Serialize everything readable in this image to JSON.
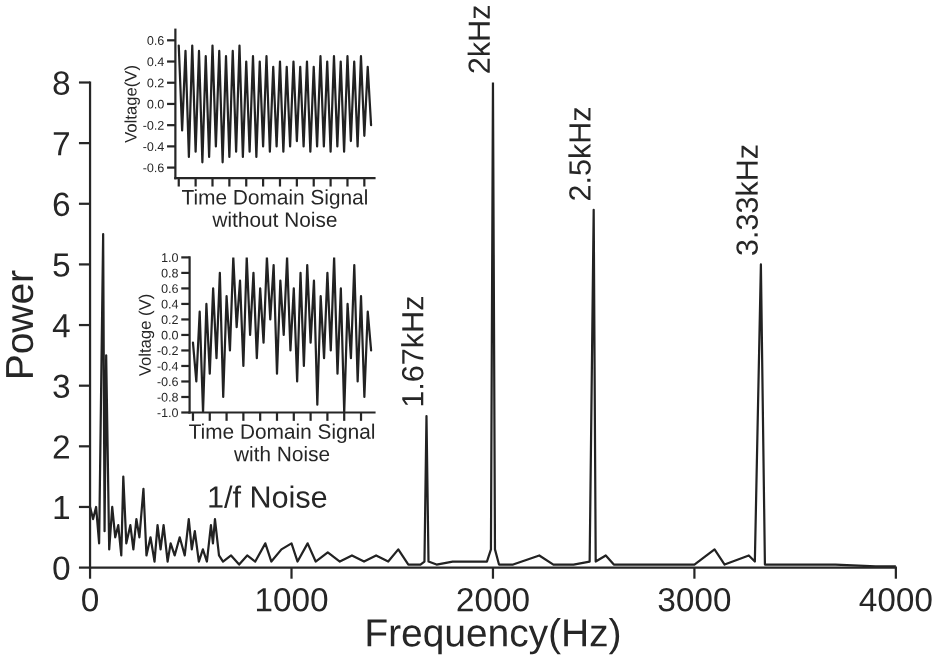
{
  "chart_data": [
    {
      "type": "line",
      "xlabel": "Frequency(Hz)",
      "ylabel": "Power",
      "xlim": [
        0,
        4000
      ],
      "ylim": [
        0,
        8
      ],
      "xticks": [
        0,
        1000,
        2000,
        3000,
        4000
      ],
      "yticks": [
        0,
        1,
        2,
        3,
        4,
        5,
        6,
        7,
        8
      ],
      "grid": false,
      "series": [
        {
          "color": "#222222",
          "x": [
            0,
            15,
            30,
            45,
            65,
            72,
            80,
            95,
            110,
            125,
            140,
            155,
            165,
            180,
            200,
            215,
            230,
            245,
            265,
            280,
            300,
            320,
            335,
            350,
            365,
            385,
            400,
            420,
            445,
            470,
            490,
            505,
            520,
            540,
            560,
            580,
            600,
            610,
            620,
            640,
            660,
            700,
            740,
            780,
            820,
            870,
            900,
            950,
            1000,
            1030,
            1080,
            1120,
            1180,
            1240,
            1300,
            1360,
            1420,
            1480,
            1530,
            1580,
            1640,
            1660,
            1670,
            1680,
            1720,
            1800,
            1900,
            1970,
            1990,
            2000,
            2010,
            2030,
            2100,
            2230,
            2300,
            2400,
            2480,
            2500,
            2510,
            2560,
            2600,
            2800,
            3000,
            3100,
            3150,
            3270,
            3300,
            3330,
            3350,
            3500,
            3700,
            3900,
            4000
          ],
          "values": [
            1.0,
            0.8,
            1.0,
            0.4,
            5.5,
            0.6,
            3.5,
            0.3,
            1.0,
            0.5,
            0.7,
            0.2,
            1.5,
            0.4,
            0.7,
            0.3,
            0.8,
            0.5,
            1.3,
            0.2,
            0.5,
            0.1,
            0.7,
            0.3,
            0.7,
            0.1,
            0.4,
            0.2,
            0.5,
            0.2,
            0.8,
            0.3,
            0.6,
            0.1,
            0.3,
            0.1,
            0.7,
            0.4,
            0.8,
            0.2,
            0.1,
            0.2,
            0.05,
            0.2,
            0.1,
            0.4,
            0.1,
            0.3,
            0.4,
            0.1,
            0.4,
            0.1,
            0.25,
            0.1,
            0.2,
            0.1,
            0.2,
            0.1,
            0.3,
            0.05,
            0.05,
            0.1,
            2.5,
            0.1,
            0.05,
            0.1,
            0.1,
            0.1,
            0.3,
            8.0,
            0.3,
            0.05,
            0.05,
            0.2,
            0.05,
            0.05,
            0.1,
            5.9,
            0.1,
            0.2,
            0.05,
            0.05,
            0.05,
            0.3,
            0.05,
            0.2,
            0.1,
            5.0,
            0.05,
            0.05,
            0.05,
            0.02,
            0.02
          ]
        }
      ],
      "annotations": [
        {
          "text": "1.67kHz",
          "x": 1670,
          "y": 2.5
        },
        {
          "text": "2kHz",
          "x": 2000,
          "y": 8.0
        },
        {
          "text": "2.5kHz",
          "x": 2500,
          "y": 5.9
        },
        {
          "text": "3.33kHz",
          "x": 3330,
          "y": 5.0
        },
        "1/f Noise"
      ]
    },
    {
      "type": "line",
      "xlabel": "Time Domain Signal\nwithout Noise",
      "ylabel": "Voltage(V)",
      "ylim": [
        -0.7,
        0.7
      ],
      "yticks": [
        -0.6,
        -0.4,
        -0.2,
        {
          "value": 0,
          "label": "0.0"
        },
        0.2,
        0.4,
        0.6
      ],
      "grid": false,
      "categories": [
        null,
        null,
        null,
        null,
        null,
        null,
        null,
        null,
        null,
        null,
        null,
        null,
        null,
        null,
        null,
        null,
        null,
        null,
        null,
        null,
        null,
        null,
        null,
        null,
        null,
        null,
        null,
        null,
        null,
        null,
        null,
        null,
        null,
        null,
        null,
        null,
        null,
        null,
        null,
        null,
        null,
        null,
        null,
        null,
        null,
        null,
        null,
        null,
        null,
        null,
        null,
        null,
        null,
        null,
        null,
        null,
        null,
        null
      ],
      "series": [
        {
          "color": "#222222",
          "values": [
            0.55,
            -0.25,
            0.5,
            -0.5,
            0.55,
            -0.45,
            0.5,
            -0.55,
            0.45,
            -0.5,
            0.55,
            -0.4,
            0.5,
            -0.55,
            0.45,
            -0.5,
            0.5,
            -0.45,
            0.55,
            -0.5,
            0.4,
            -0.45,
            0.45,
            -0.5,
            0.4,
            -0.4,
            0.45,
            -0.45,
            0.35,
            -0.4,
            0.4,
            -0.45,
            0.35,
            -0.4,
            0.4,
            -0.35,
            0.35,
            -0.4,
            0.4,
            -0.45,
            0.35,
            -0.4,
            0.45,
            -0.4,
            0.4,
            -0.45,
            0.45,
            -0.4,
            0.4,
            -0.45,
            0.45,
            -0.35,
            0.4,
            -0.4,
            0.45,
            -0.3,
            0.35,
            -0.2
          ]
        }
      ]
    },
    {
      "type": "line",
      "xlabel": "Time Domain Signal\nwith Noise",
      "ylabel": "Voltage (V)",
      "ylim": [
        -1.0,
        1.0
      ],
      "yticks": [
        {
          "value": -1,
          "label": "-1.0"
        },
        -0.8,
        -0.6,
        -0.4,
        -0.2,
        {
          "value": 0,
          "label": "0.0"
        },
        0.2,
        0.4,
        0.6,
        0.8,
        {
          "value": 1,
          "label": "1.0"
        }
      ],
      "grid": false,
      "categories": [
        null,
        null,
        null,
        null,
        null,
        null,
        null,
        null,
        null,
        null,
        null,
        null,
        null,
        null,
        null,
        null,
        null,
        null,
        null,
        null,
        null,
        null,
        null,
        null,
        null,
        null,
        null,
        null,
        null,
        null,
        null,
        null,
        null,
        null,
        null,
        null,
        null,
        null,
        null,
        null,
        null,
        null,
        null,
        null,
        null,
        null,
        null,
        null,
        null,
        null,
        null,
        null,
        null,
        null
      ],
      "series": [
        {
          "color": "#222222",
          "values": [
            -0.1,
            -0.6,
            0.3,
            -1.0,
            0.4,
            -0.5,
            0.6,
            -0.3,
            0.8,
            -0.8,
            0.5,
            -0.2,
            1.0,
            0.1,
            0.7,
            -0.4,
            1.0,
            0.0,
            0.8,
            -0.3,
            0.6,
            -0.1,
            1.0,
            0.2,
            0.9,
            -0.5,
            0.7,
            0.0,
            1.0,
            -0.2,
            0.6,
            -0.6,
            0.8,
            -0.4,
            0.9,
            -0.1,
            0.7,
            -0.9,
            0.5,
            -0.3,
            0.8,
            -0.2,
            1.0,
            -0.5,
            0.6,
            -1.0,
            0.4,
            -0.3,
            0.9,
            -0.6,
            0.5,
            -0.8,
            0.3,
            -0.2
          ]
        }
      ]
    }
  ]
}
